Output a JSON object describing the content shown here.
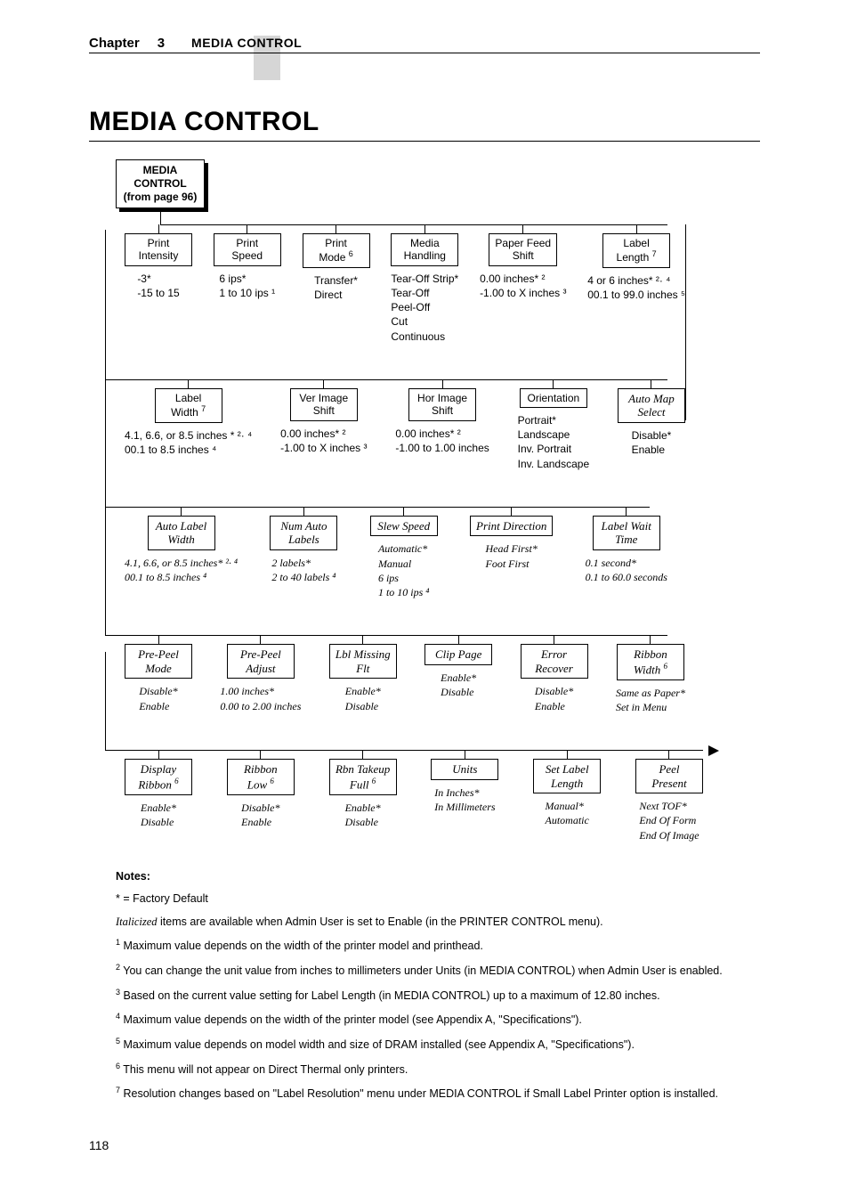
{
  "header": {
    "chapter_label": "Chapter",
    "chapter_num": "3",
    "chapter_title": "MEDIA CONTROL"
  },
  "section_title": "MEDIA CONTROL",
  "root": {
    "l1": "MEDIA",
    "l2": "CONTROL",
    "l3": "(from page 96)"
  },
  "row1": [
    {
      "title_l1": "Print",
      "title_l2": "Intensity",
      "sup": "",
      "italic": false,
      "vals": [
        "-3*",
        "-15 to 15"
      ]
    },
    {
      "title_l1": "Print",
      "title_l2": "Speed",
      "sup": "",
      "italic": false,
      "vals": [
        "6 ips*",
        "1 to 10 ips ¹"
      ]
    },
    {
      "title_l1": "Print",
      "title_l2": "Mode ",
      "sup": "6",
      "italic": false,
      "vals": [
        "Transfer*",
        "Direct"
      ]
    },
    {
      "title_l1": "Media",
      "title_l2": "Handling",
      "sup": "",
      "italic": false,
      "vals": [
        "Tear-Off Strip*",
        "Tear-Off",
        "Peel-Off",
        "Cut",
        "Continuous"
      ]
    },
    {
      "title_l1": "Paper Feed",
      "title_l2": "Shift",
      "sup": "",
      "italic": false,
      "vals": [
        "0.00 inches* ²",
        "-1.00 to X inches ³"
      ]
    },
    {
      "title_l1": "Label",
      "title_l2": "Length ",
      "sup": "7",
      "italic": false,
      "vals": [
        "4 or 6 inches* ²· ⁴",
        "00.1 to 99.0 inches ⁵"
      ]
    }
  ],
  "row2": [
    {
      "title_l1": "Label",
      "title_l2": "Width ",
      "sup": "7",
      "italic": false,
      "vals": [
        "4.1, 6.6, or 8.5 inches * ²· ⁴",
        "00.1 to 8.5 inches ⁴"
      ]
    },
    {
      "title_l1": "Ver Image",
      "title_l2": "Shift",
      "sup": "",
      "italic": false,
      "vals": [
        "0.00 inches* ²",
        "-1.00 to X inches ³"
      ]
    },
    {
      "title_l1": "Hor Image",
      "title_l2": "Shift",
      "sup": "",
      "italic": false,
      "vals": [
        "0.00 inches* ²",
        "-1.00 to 1.00 inches"
      ]
    },
    {
      "title_l1": "Orientation",
      "title_l2": "",
      "sup": "",
      "italic": false,
      "vals": [
        "Portrait*",
        "Landscape",
        "Inv. Portrait",
        "Inv. Landscape"
      ]
    },
    {
      "title_l1": "Auto Map",
      "title_l2": "Select",
      "sup": "",
      "italic": true,
      "vals": [
        "Disable*",
        "Enable"
      ]
    }
  ],
  "row3": [
    {
      "title_l1": "Auto Label",
      "title_l2": "Width",
      "sup": "",
      "italic": true,
      "vals_italic": true,
      "vals": [
        "4.1, 6.6, or 8.5 inches* ²· ⁴",
        "00.1 to 8.5 inches ⁴"
      ]
    },
    {
      "title_l1": "Num Auto",
      "title_l2": "Labels",
      "sup": "",
      "italic": true,
      "vals_italic": true,
      "vals": [
        "2 labels*",
        "2 to 40 labels ⁴"
      ]
    },
    {
      "title_l1": "Slew Speed",
      "title_l2": "",
      "sup": "",
      "italic": true,
      "vals_italic": true,
      "vals": [
        "Automatic*",
        "Manual",
        "6 ips",
        "1 to 10 ips ⁴"
      ]
    },
    {
      "title_l1": "Print Direction",
      "title_l2": "",
      "sup": "",
      "italic": true,
      "vals_italic": true,
      "vals": [
        "Head First*",
        "Foot First"
      ]
    },
    {
      "title_l1": "Label Wait",
      "title_l2": "Time",
      "sup": "",
      "italic": true,
      "vals_italic": true,
      "vals": [
        "0.1 second*",
        "0.1 to 60.0 seconds"
      ]
    }
  ],
  "row4": [
    {
      "title_l1": "Pre-Peel",
      "title_l2": "Mode",
      "sup": "",
      "italic": true,
      "vals_italic": true,
      "vals": [
        "Disable*",
        "Enable"
      ]
    },
    {
      "title_l1": "Pre-Peel",
      "title_l2": "Adjust",
      "sup": "",
      "italic": true,
      "vals_italic": true,
      "vals": [
        "1.00 inches*",
        "0.00 to 2.00 inches"
      ]
    },
    {
      "title_l1": "Lbl Missing",
      "title_l2": "Flt",
      "sup": "",
      "italic": true,
      "vals_italic": true,
      "vals": [
        "Enable*",
        "Disable"
      ]
    },
    {
      "title_l1": "Clip Page",
      "title_l2": "",
      "sup": "",
      "italic": true,
      "vals_italic": true,
      "vals": [
        "Enable*",
        "Disable"
      ]
    },
    {
      "title_l1": "Error",
      "title_l2": "Recover",
      "sup": "",
      "italic": true,
      "vals_italic": true,
      "vals": [
        "Disable*",
        "Enable"
      ]
    },
    {
      "title_l1": "Ribbon",
      "title_l2": "Width ",
      "sup": "6",
      "italic": true,
      "vals_italic": true,
      "vals": [
        "Same as Paper*",
        "Set in Menu"
      ]
    }
  ],
  "row5": [
    {
      "title_l1": "Display",
      "title_l2": "Ribbon ",
      "sup": "6",
      "italic": true,
      "vals_italic": true,
      "vals": [
        "Enable*",
        "Disable"
      ]
    },
    {
      "title_l1": "Ribbon",
      "title_l2": "Low ",
      "sup": "6",
      "italic": true,
      "vals_italic": true,
      "vals": [
        "Disable*",
        "Enable"
      ]
    },
    {
      "title_l1": "Rbn Takeup",
      "title_l2": "Full ",
      "sup": "6",
      "italic": true,
      "vals_italic": true,
      "vals": [
        "Enable*",
        "Disable"
      ]
    },
    {
      "title_l1": "Units",
      "title_l2": "",
      "sup": "",
      "italic": true,
      "vals_italic": true,
      "vals": [
        "In Inches*",
        "In Millimeters"
      ]
    },
    {
      "title_l1": "Set Label",
      "title_l2": "Length",
      "sup": "",
      "italic": true,
      "vals_italic": true,
      "vals": [
        "Manual*",
        "Automatic"
      ]
    },
    {
      "title_l1": "Peel",
      "title_l2": "Present",
      "sup": "",
      "italic": true,
      "vals_italic": true,
      "vals": [
        "Next TOF*",
        "End Of Form",
        "End Of Image"
      ]
    }
  ],
  "notes": {
    "heading": "Notes:",
    "n0": "* = Factory Default",
    "n_italic_prefix": "Italicized",
    "n_italic_rest": " items are available when Admin User is set to Enable (in the PRINTER CONTROL menu).",
    "n1": "Maximum value depends on the width of the printer model and printhead.",
    "n2": "You can change the unit value from inches to millimeters under Units (in MEDIA CONTROL) when Admin User is enabled.",
    "n3": "Based on the current value setting for Label Length (in MEDIA CONTROL) up to a maximum of 12.80 inches.",
    "n4": "Maximum value depends on the width of the printer model (see Appendix A, \"Specifications\").",
    "n5": "Maximum value depends on model width and size of DRAM installed (see Appendix A, \"Specifications\").",
    "n6": "This menu will not appear on Direct Thermal only printers.",
    "n7": "Resolution changes based on \"Label Resolution\" menu under MEDIA CONTROL if Small Label Printer option is installed."
  },
  "page_number": "118"
}
